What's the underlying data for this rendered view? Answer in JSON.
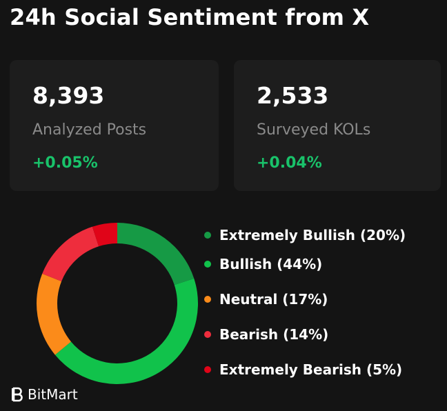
{
  "title": "24h Social Sentiment from X",
  "cards": [
    {
      "value": "8,393",
      "label": "Analyzed Posts",
      "delta": "+0.05%"
    },
    {
      "value": "2,533",
      "label": "Surveyed KOLs",
      "delta": "+0.04%"
    }
  ],
  "colors": {
    "background": "#141414",
    "card": "#1d1d1d",
    "positive": "#19c26a"
  },
  "chart_data": {
    "type": "pie",
    "categories": [
      "Extremely Bullish",
      "Bullish",
      "Neutral",
      "Bearish",
      "Extremely Bearish"
    ],
    "values": [
      20,
      44,
      17,
      14,
      5
    ],
    "labels": [
      "Extremely Bullish (20%)",
      "Bullish (44%)",
      "Neutral (17%)",
      "Bearish (14%)",
      "Extremely Bearish (5%)"
    ],
    "colors": [
      "#169a45",
      "#11c24b",
      "#fb8b1a",
      "#ee2d3d",
      "#e00418"
    ],
    "legend_position": "right",
    "style": "donut"
  },
  "brand": {
    "name": "BitMart",
    "icon": "bitmart-logo-icon"
  }
}
